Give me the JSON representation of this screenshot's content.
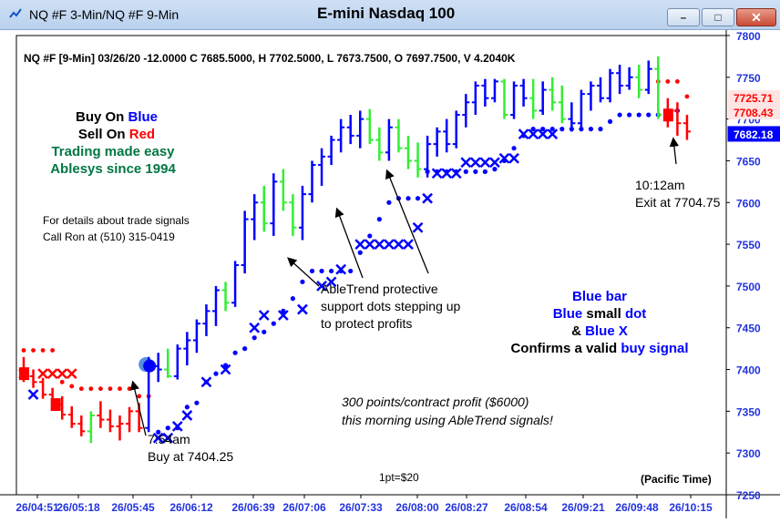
{
  "window": {
    "title": "NQ #F 3-Min/NQ #F 9-Min",
    "center_title": "E-mini Nasdaq 100",
    "minimize_label": "–",
    "maximize_label": "□",
    "close_label": "✕"
  },
  "chart_header": "NQ #F [9-Min] 03/26/20  -12.0000 C 7685.5000, H 7702.5000, L 7673.7500, O 7697.7500, V 4.2040K",
  "legend_text": {
    "line1_prefix": "Buy On ",
    "line1_word": "Blue",
    "line2_prefix": "Sell On ",
    "line2_word": "Red",
    "line3": "Trading made easy",
    "line4": "Ablesys since 1994",
    "details1": "For details about trade signals",
    "details2": "Call Ron at (510) 315-0419"
  },
  "annotations": {
    "exit_time": "10:12am",
    "exit_price": "Exit at 7704.75",
    "support1": "AbleTrend protective",
    "support2": "support dots stepping up",
    "support3": "to protect profits",
    "buy_time": "7:54am",
    "buy_price": "Buy at 7404.25",
    "profit1": "300 points/contract profit ($6000)",
    "profit2": "this morning using AbleTrend signals!",
    "pt": "1pt=$20",
    "timezone": "(Pacific Time)",
    "confirm_blue_bar": "Blue bar",
    "confirm_dot_blue": "Blue",
    "confirm_dot_small": "small",
    "confirm_dot_dot": "dot",
    "confirm_x_amp": "&",
    "confirm_x_blue": "Blue X",
    "confirm_valid_a": "Confirms a valid",
    "confirm_valid_b": "buy signal"
  },
  "price_labels": [
    {
      "value": 7725.71,
      "text": "7725.71",
      "color": "#ff0000"
    },
    {
      "value": 7708.43,
      "text": "7708.43",
      "color": "#ff0000"
    },
    {
      "value": 7682.18,
      "text": "7682.18",
      "color": "#0000ff"
    }
  ],
  "colors": {
    "blue": "#0000ff",
    "red": "#ff0000",
    "green": "#33ee33",
    "axis_text": "#2233dd",
    "brand_green": "#007744"
  },
  "chart_data": {
    "type": "ohlc",
    "x_labels": [
      "26/04:51",
      "26/05:18",
      "26/05:45",
      "26/06:12",
      "26/06:39",
      "26/07:06",
      "26/07:33",
      "26/08:00",
      "26/08:27",
      "26/08:54",
      "26/09:21",
      "26/09:48",
      "26/10:15"
    ],
    "ylim": [
      7250,
      7800
    ],
    "yticks": [
      7250,
      7300,
      7350,
      7400,
      7450,
      7500,
      7550,
      7600,
      7650,
      7700,
      7750,
      7800
    ],
    "bars": [
      {
        "o": 7400,
        "h": 7415,
        "l": 7385,
        "c": 7392,
        "col": "red"
      },
      {
        "o": 7392,
        "h": 7400,
        "l": 7378,
        "c": 7385,
        "col": "red"
      },
      {
        "o": 7385,
        "h": 7390,
        "l": 7365,
        "c": 7370,
        "col": "red"
      },
      {
        "o": 7370,
        "h": 7378,
        "l": 7352,
        "c": 7358,
        "col": "red"
      },
      {
        "o": 7358,
        "h": 7368,
        "l": 7340,
        "c": 7346,
        "col": "red"
      },
      {
        "o": 7346,
        "h": 7356,
        "l": 7330,
        "c": 7335,
        "col": "red"
      },
      {
        "o": 7335,
        "h": 7345,
        "l": 7320,
        "c": 7326,
        "col": "red"
      },
      {
        "o": 7326,
        "h": 7350,
        "l": 7312,
        "c": 7345,
        "col": "green"
      },
      {
        "o": 7345,
        "h": 7362,
        "l": 7330,
        "c": 7340,
        "col": "red"
      },
      {
        "o": 7340,
        "h": 7352,
        "l": 7325,
        "c": 7332,
        "col": "red"
      },
      {
        "o": 7332,
        "h": 7345,
        "l": 7315,
        "c": 7335,
        "col": "red"
      },
      {
        "o": 7335,
        "h": 7355,
        "l": 7325,
        "c": 7350,
        "col": "red"
      },
      {
        "o": 7350,
        "h": 7360,
        "l": 7325,
        "c": 7330,
        "col": "red"
      },
      {
        "o": 7330,
        "h": 7415,
        "l": 7325,
        "c": 7404,
        "col": "blue"
      },
      {
        "o": 7404,
        "h": 7420,
        "l": 7385,
        "c": 7400,
        "col": "blue"
      },
      {
        "o": 7400,
        "h": 7425,
        "l": 7390,
        "c": 7392,
        "col": "green"
      },
      {
        "o": 7392,
        "h": 7430,
        "l": 7388,
        "c": 7425,
        "col": "blue"
      },
      {
        "o": 7425,
        "h": 7445,
        "l": 7405,
        "c": 7435,
        "col": "blue"
      },
      {
        "o": 7435,
        "h": 7460,
        "l": 7420,
        "c": 7455,
        "col": "blue"
      },
      {
        "o": 7455,
        "h": 7478,
        "l": 7440,
        "c": 7470,
        "col": "blue"
      },
      {
        "o": 7470,
        "h": 7500,
        "l": 7452,
        "c": 7495,
        "col": "blue"
      },
      {
        "o": 7495,
        "h": 7505,
        "l": 7470,
        "c": 7480,
        "col": "green"
      },
      {
        "o": 7480,
        "h": 7530,
        "l": 7475,
        "c": 7525,
        "col": "blue"
      },
      {
        "o": 7525,
        "h": 7590,
        "l": 7515,
        "c": 7580,
        "col": "blue"
      },
      {
        "o": 7580,
        "h": 7610,
        "l": 7555,
        "c": 7600,
        "col": "blue"
      },
      {
        "o": 7600,
        "h": 7620,
        "l": 7565,
        "c": 7575,
        "col": "green"
      },
      {
        "o": 7575,
        "h": 7635,
        "l": 7560,
        "c": 7625,
        "col": "blue"
      },
      {
        "o": 7625,
        "h": 7640,
        "l": 7590,
        "c": 7600,
        "col": "green"
      },
      {
        "o": 7600,
        "h": 7610,
        "l": 7560,
        "c": 7570,
        "col": "green"
      },
      {
        "o": 7570,
        "h": 7620,
        "l": 7555,
        "c": 7610,
        "col": "blue"
      },
      {
        "o": 7610,
        "h": 7650,
        "l": 7600,
        "c": 7645,
        "col": "blue"
      },
      {
        "o": 7645,
        "h": 7665,
        "l": 7620,
        "c": 7655,
        "col": "blue"
      },
      {
        "o": 7655,
        "h": 7680,
        "l": 7645,
        "c": 7675,
        "col": "blue"
      },
      {
        "o": 7675,
        "h": 7700,
        "l": 7660,
        "c": 7690,
        "col": "blue"
      },
      {
        "o": 7690,
        "h": 7705,
        "l": 7670,
        "c": 7680,
        "col": "blue"
      },
      {
        "o": 7680,
        "h": 7710,
        "l": 7665,
        "c": 7700,
        "col": "blue"
      },
      {
        "o": 7700,
        "h": 7712,
        "l": 7670,
        "c": 7675,
        "col": "green"
      },
      {
        "o": 7675,
        "h": 7690,
        "l": 7650,
        "c": 7660,
        "col": "green"
      },
      {
        "o": 7660,
        "h": 7700,
        "l": 7650,
        "c": 7690,
        "col": "blue"
      },
      {
        "o": 7690,
        "h": 7700,
        "l": 7660,
        "c": 7665,
        "col": "green"
      },
      {
        "o": 7665,
        "h": 7680,
        "l": 7640,
        "c": 7650,
        "col": "green"
      },
      {
        "o": 7650,
        "h": 7672,
        "l": 7630,
        "c": 7640,
        "col": "green"
      },
      {
        "o": 7640,
        "h": 7680,
        "l": 7630,
        "c": 7670,
        "col": "blue"
      },
      {
        "o": 7670,
        "h": 7690,
        "l": 7655,
        "c": 7685,
        "col": "blue"
      },
      {
        "o": 7685,
        "h": 7700,
        "l": 7660,
        "c": 7670,
        "col": "blue"
      },
      {
        "o": 7670,
        "h": 7710,
        "l": 7665,
        "c": 7705,
        "col": "blue"
      },
      {
        "o": 7705,
        "h": 7730,
        "l": 7690,
        "c": 7720,
        "col": "blue"
      },
      {
        "o": 7720,
        "h": 7745,
        "l": 7705,
        "c": 7740,
        "col": "blue"
      },
      {
        "o": 7740,
        "h": 7748,
        "l": 7715,
        "c": 7725,
        "col": "blue"
      },
      {
        "o": 7725,
        "h": 7748,
        "l": 7720,
        "c": 7745,
        "col": "blue"
      },
      {
        "o": 7745,
        "h": 7748,
        "l": 7700,
        "c": 7705,
        "col": "green"
      },
      {
        "o": 7705,
        "h": 7745,
        "l": 7700,
        "c": 7740,
        "col": "blue"
      },
      {
        "o": 7740,
        "h": 7748,
        "l": 7715,
        "c": 7725,
        "col": "blue"
      },
      {
        "o": 7725,
        "h": 7748,
        "l": 7700,
        "c": 7710,
        "col": "green"
      },
      {
        "o": 7710,
        "h": 7745,
        "l": 7705,
        "c": 7735,
        "col": "blue"
      },
      {
        "o": 7735,
        "h": 7750,
        "l": 7710,
        "c": 7720,
        "col": "green"
      },
      {
        "o": 7720,
        "h": 7740,
        "l": 7695,
        "c": 7700,
        "col": "green"
      },
      {
        "o": 7700,
        "h": 7720,
        "l": 7685,
        "c": 7695,
        "col": "blue"
      },
      {
        "o": 7695,
        "h": 7735,
        "l": 7690,
        "c": 7730,
        "col": "blue"
      },
      {
        "o": 7730,
        "h": 7745,
        "l": 7710,
        "c": 7740,
        "col": "blue"
      },
      {
        "o": 7740,
        "h": 7750,
        "l": 7720,
        "c": 7725,
        "col": "blue"
      },
      {
        "o": 7725,
        "h": 7760,
        "l": 7720,
        "c": 7755,
        "col": "blue"
      },
      {
        "o": 7755,
        "h": 7765,
        "l": 7730,
        "c": 7740,
        "col": "blue"
      },
      {
        "o": 7740,
        "h": 7762,
        "l": 7735,
        "c": 7750,
        "col": "blue"
      },
      {
        "o": 7750,
        "h": 7765,
        "l": 7725,
        "c": 7735,
        "col": "green"
      },
      {
        "o": 7735,
        "h": 7770,
        "l": 7730,
        "c": 7760,
        "col": "blue"
      },
      {
        "o": 7760,
        "h": 7775,
        "l": 7700,
        "c": 7705,
        "col": "green"
      },
      {
        "o": 7705,
        "h": 7725,
        "l": 7690,
        "c": 7710,
        "col": "red"
      },
      {
        "o": 7710,
        "h": 7720,
        "l": 7680,
        "c": 7695,
        "col": "red"
      },
      {
        "o": 7695,
        "h": 7705,
        "l": 7675,
        "c": 7685,
        "col": "red"
      }
    ],
    "blue_dots": [
      [
        14,
        7325
      ],
      [
        15,
        7330
      ],
      [
        16,
        7330
      ],
      [
        17,
        7355
      ],
      [
        18,
        7360
      ],
      [
        19,
        7385
      ],
      [
        20,
        7395
      ],
      [
        21,
        7405
      ],
      [
        22,
        7420
      ],
      [
        23,
        7425
      ],
      [
        24,
        7438
      ],
      [
        25,
        7445
      ],
      [
        26,
        7455
      ],
      [
        27,
        7470
      ],
      [
        28,
        7485
      ],
      [
        29,
        7505
      ],
      [
        30,
        7518
      ],
      [
        31,
        7518
      ],
      [
        32,
        7518
      ],
      [
        33,
        7518
      ],
      [
        34,
        7518
      ],
      [
        35,
        7540
      ],
      [
        36,
        7560
      ],
      [
        37,
        7580
      ],
      [
        38,
        7600
      ],
      [
        39,
        7605
      ],
      [
        40,
        7605
      ],
      [
        41,
        7605
      ],
      [
        42,
        7637
      ],
      [
        43,
        7637
      ],
      [
        44,
        7637
      ],
      [
        45,
        7637
      ],
      [
        46,
        7637
      ],
      [
        47,
        7637
      ],
      [
        48,
        7637
      ],
      [
        49,
        7640
      ],
      [
        50,
        7650
      ],
      [
        51,
        7665
      ],
      [
        52,
        7680
      ],
      [
        53,
        7688
      ],
      [
        54,
        7688
      ],
      [
        55,
        7688
      ],
      [
        56,
        7688
      ],
      [
        57,
        7688
      ],
      [
        58,
        7688
      ],
      [
        59,
        7688
      ],
      [
        60,
        7688
      ],
      [
        61,
        7697
      ],
      [
        62,
        7705
      ],
      [
        63,
        7705
      ],
      [
        64,
        7705
      ],
      [
        65,
        7705
      ],
      [
        66,
        7705
      ],
      [
        67,
        7708
      ],
      [
        68,
        7710
      ]
    ],
    "blue_x": [
      [
        1,
        7370
      ],
      [
        14,
        7318
      ],
      [
        15,
        7318
      ],
      [
        16,
        7332
      ],
      [
        17,
        7345
      ],
      [
        19,
        7385
      ],
      [
        21,
        7400
      ],
      [
        24,
        7450
      ],
      [
        25,
        7465
      ],
      [
        27,
        7465
      ],
      [
        29,
        7472
      ],
      [
        31,
        7500
      ],
      [
        32,
        7505
      ],
      [
        33,
        7520
      ],
      [
        35,
        7550
      ],
      [
        36,
        7550
      ],
      [
        37,
        7550
      ],
      [
        38,
        7550
      ],
      [
        39,
        7550
      ],
      [
        40,
        7550
      ],
      [
        41,
        7570
      ],
      [
        42,
        7605
      ],
      [
        43,
        7635
      ],
      [
        44,
        7635
      ],
      [
        45,
        7635
      ],
      [
        46,
        7648
      ],
      [
        47,
        7648
      ],
      [
        48,
        7648
      ],
      [
        49,
        7648
      ],
      [
        50,
        7653
      ],
      [
        51,
        7653
      ],
      [
        52,
        7682
      ],
      [
        53,
        7682
      ],
      [
        54,
        7682
      ],
      [
        55,
        7682
      ]
    ],
    "red_dots": [
      [
        0,
        7423
      ],
      [
        1,
        7423
      ],
      [
        2,
        7423
      ],
      [
        3,
        7423
      ],
      [
        4,
        7385
      ],
      [
        5,
        7380
      ],
      [
        6,
        7377
      ],
      [
        7,
        7377
      ],
      [
        8,
        7377
      ],
      [
        9,
        7377
      ],
      [
        10,
        7377
      ],
      [
        11,
        7377
      ],
      [
        12,
        7368
      ],
      [
        13,
        7368
      ],
      [
        66,
        7745
      ],
      [
        67,
        7745
      ],
      [
        68,
        7745
      ],
      [
        69,
        7727
      ]
    ],
    "red_x": [
      [
        0,
        7395
      ],
      [
        2,
        7395
      ],
      [
        3,
        7395
      ],
      [
        4,
        7395
      ],
      [
        5,
        7395
      ]
    ],
    "entry_marker": {
      "bar": 13,
      "price": 7404.25
    },
    "exit_marker": {
      "bar": 67,
      "price": 7704.75
    }
  }
}
